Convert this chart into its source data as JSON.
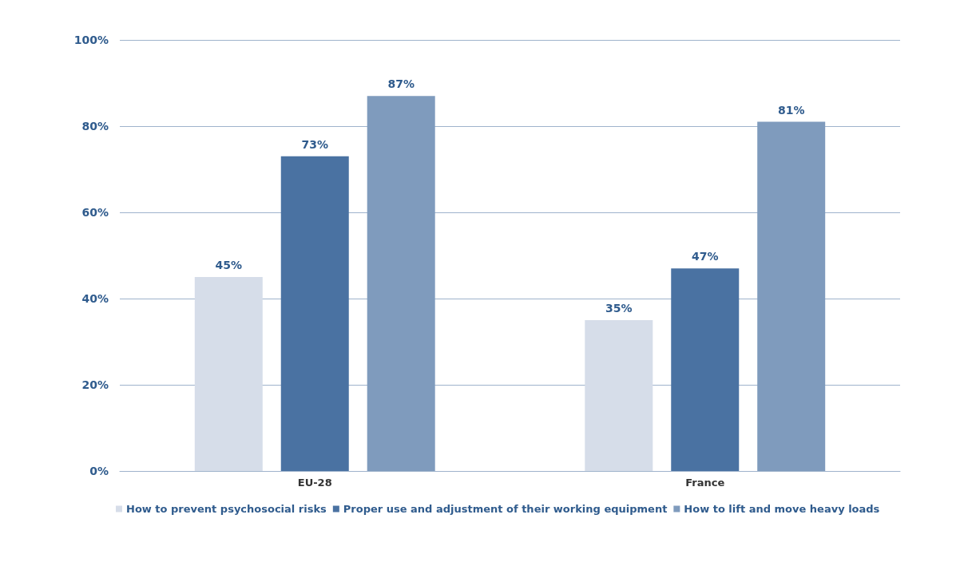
{
  "chart_data": {
    "type": "bar",
    "categories": [
      "EU-28",
      "France"
    ],
    "series": [
      {
        "name": "How to prevent psychosocial risks",
        "color": "#d6dde9",
        "values": [
          45,
          35
        ],
        "value_labels": [
          "45%",
          "35%"
        ]
      },
      {
        "name": "Proper use and adjustment of their working equipment",
        "color": "#4a72a2",
        "values": [
          73,
          47
        ],
        "value_labels": [
          "73%",
          "47%"
        ]
      },
      {
        "name": "How to lift and move heavy loads",
        "color": "#7f9bbd",
        "values": [
          87,
          81
        ],
        "value_labels": [
          "87%",
          "81%"
        ]
      }
    ],
    "ylim": [
      0,
      100
    ],
    "yticks": [
      {
        "value": 0,
        "label": "0%"
      },
      {
        "value": 20,
        "label": "20%"
      },
      {
        "value": 40,
        "label": "40%"
      },
      {
        "value": 60,
        "label": "60%"
      },
      {
        "value": 80,
        "label": "80%"
      },
      {
        "value": 100,
        "label": "100%"
      }
    ],
    "grid": "y",
    "legend": "bottom left"
  }
}
